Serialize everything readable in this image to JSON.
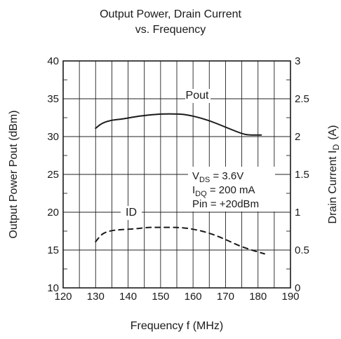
{
  "chart_data": {
    "type": "line",
    "title": "Output Power, Drain Current",
    "subtitle": "vs. Frequency",
    "xlabel": "Frequency  f  (MHz)",
    "ylabel_left": "Output Power  Pout  (dBm)",
    "ylabel_right": "Drain Current  I",
    "ylabel_right_sub": "D",
    "ylabel_right_unit": "(A)",
    "xlim": [
      120,
      190
    ],
    "ylim_left": [
      10,
      40
    ],
    "ylim_right": [
      0,
      3
    ],
    "x_ticks": [
      "120",
      "130",
      "140",
      "150",
      "160",
      "170",
      "180",
      "190"
    ],
    "y_left_ticks": [
      "10",
      "15",
      "20",
      "25",
      "30",
      "35",
      "40"
    ],
    "y_right_ticks": [
      "0",
      "0.5",
      "1",
      "1.5",
      "2",
      "2.5",
      "3"
    ],
    "grid": true,
    "series": [
      {
        "name": "Pout",
        "axis": "left",
        "style": "solid",
        "x": [
          130,
          132,
          135,
          138,
          142,
          145,
          150,
          155,
          158,
          162,
          165,
          168,
          172,
          175,
          177,
          181
        ],
        "values": [
          31.1,
          31.8,
          32.2,
          32.3,
          32.6,
          32.8,
          33.0,
          33.0,
          32.9,
          32.5,
          32.1,
          31.6,
          30.9,
          30.4,
          30.2,
          30.2
        ]
      },
      {
        "name": "ID",
        "axis": "right",
        "style": "dashed",
        "x": [
          130,
          132,
          135,
          138,
          142,
          146,
          150,
          155,
          158,
          162,
          166,
          170,
          174,
          178,
          182
        ],
        "values": [
          0.61,
          0.72,
          0.76,
          0.77,
          0.78,
          0.8,
          0.8,
          0.8,
          0.79,
          0.76,
          0.71,
          0.64,
          0.56,
          0.5,
          0.45
        ]
      }
    ],
    "conditions": {
      "vds_main": "V",
      "vds_sub": "DS",
      "vds_value": " = 3.6V",
      "idq_main": "I",
      "idq_sub": "DQ",
      "idq_value": " = 200 mA",
      "pin": "Pin = +20dBm"
    }
  }
}
